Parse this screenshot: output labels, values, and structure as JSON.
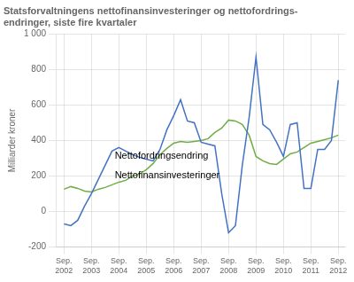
{
  "chart_data": {
    "type": "line",
    "title": [
      "Statsforvaltningens nettofinansinvesteringer og nettofordrings-",
      "endringer, siste fire kvartaler"
    ],
    "ylabel": "Milliarder kroner",
    "x": [
      2002.75,
      2003.0,
      2003.25,
      2003.5,
      2003.75,
      2004.0,
      2004.25,
      2004.5,
      2004.75,
      2005.0,
      2005.25,
      2005.5,
      2005.75,
      2006.0,
      2006.25,
      2006.5,
      2006.75,
      2007.0,
      2007.25,
      2007.5,
      2007.75,
      2008.0,
      2008.25,
      2008.5,
      2008.75,
      2009.0,
      2009.25,
      2009.5,
      2009.75,
      2010.0,
      2010.25,
      2010.5,
      2010.75,
      2011.0,
      2011.25,
      2011.5,
      2011.75,
      2012.0,
      2012.25,
      2012.5,
      2012.75
    ],
    "series": [
      {
        "color": "#4472C4",
        "values": [
          -70,
          -80,
          -50,
          30,
          100,
          180,
          260,
          340,
          360,
          340,
          320,
          305,
          295,
          285,
          350,
          460,
          540,
          630,
          510,
          500,
          390,
          380,
          370,
          100,
          -120,
          -80,
          260,
          530,
          870,
          490,
          460,
          390,
          310,
          490,
          500,
          130,
          130,
          350,
          350,
          400,
          740
        ]
      },
      {
        "color": "#70AD47",
        "values": [
          125,
          140,
          130,
          115,
          110,
          125,
          135,
          150,
          165,
          175,
          200,
          210,
          235,
          270,
          320,
          355,
          385,
          395,
          390,
          395,
          400,
          410,
          445,
          470,
          515,
          510,
          490,
          430,
          310,
          285,
          270,
          265,
          295,
          325,
          335,
          360,
          385,
          395,
          405,
          415,
          430
        ]
      }
    ],
    "annotations": [
      {
        "text": "Nettofordringsendring",
        "x": 2004.6,
        "y": 295
      },
      {
        "text": "Nettofinansinvesteringer",
        "x": 2004.6,
        "y": 185
      }
    ],
    "xlim": [
      2002.45,
      2013.0
    ],
    "xticks": [
      {
        "value": 2002.75,
        "label": "Sep.\n2002"
      },
      {
        "value": 2003.75,
        "label": "Sep.\n2003"
      },
      {
        "value": 2004.75,
        "label": "Sep.\n2004"
      },
      {
        "value": 2005.75,
        "label": "Sep.\n2005"
      },
      {
        "value": 2006.75,
        "label": "Sep.\n2006"
      },
      {
        "value": 2007.75,
        "label": "Sep.\n2007"
      },
      {
        "value": 2008.75,
        "label": "Sep.\n2008"
      },
      {
        "value": 2009.75,
        "label": "Sep.\n2009"
      },
      {
        "value": 2010.75,
        "label": "Sep.\n2010"
      },
      {
        "value": 2011.75,
        "label": "Sep.\n2011"
      },
      {
        "value": 2012.75,
        "label": "Sep.\n2012"
      }
    ],
    "ylim": [
      -200,
      1000
    ],
    "yticks": [
      -200,
      0,
      200,
      400,
      600,
      800,
      {
        "value": 1000,
        "label": "1 000"
      }
    ],
    "grid": true
  }
}
